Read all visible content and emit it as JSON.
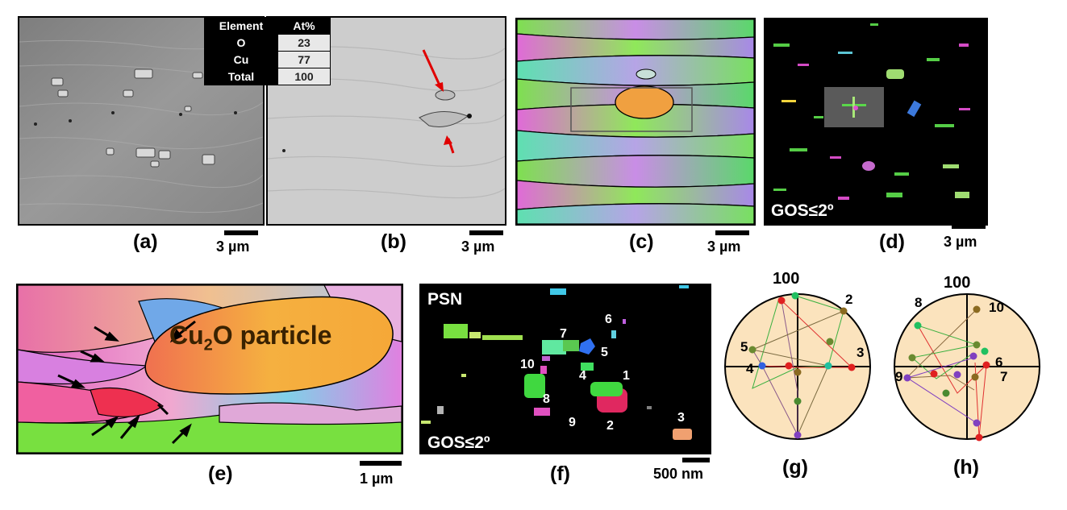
{
  "panels": {
    "a": {
      "label": "(a)",
      "scale": "3 µm"
    },
    "b": {
      "label": "(b)",
      "scale": "3 µm"
    },
    "c": {
      "label": "(c)",
      "scale": "3 µm"
    },
    "d": {
      "label": "(d)",
      "scale": "3 µm",
      "overlay": "GOS≤2º"
    },
    "e": {
      "label": "(e)",
      "scale": "1 µm",
      "particle": "Cu",
      "particle_sub": "2",
      "particle_rest": "O particle"
    },
    "f": {
      "label": "(f)",
      "scale": "500 nm",
      "top_text": "PSN",
      "bottom_text": "GOS≤2º",
      "grain_numbers": [
        "1",
        "2",
        "3",
        "4",
        "5",
        "6",
        "7",
        "8",
        "9",
        "10"
      ]
    },
    "g": {
      "label": "(g)",
      "pole": "100",
      "points": [
        "2",
        "3",
        "4",
        "5"
      ]
    },
    "h": {
      "label": "(h)",
      "pole": "100",
      "points": [
        "6",
        "7",
        "8",
        "9",
        "10"
      ]
    }
  },
  "table": {
    "headers": [
      "Element",
      "At%"
    ],
    "rows": [
      {
        "el": "O",
        "val": "23"
      },
      {
        "el": "Cu",
        "val": "77"
      },
      {
        "el": "Total",
        "val": "100"
      }
    ]
  }
}
